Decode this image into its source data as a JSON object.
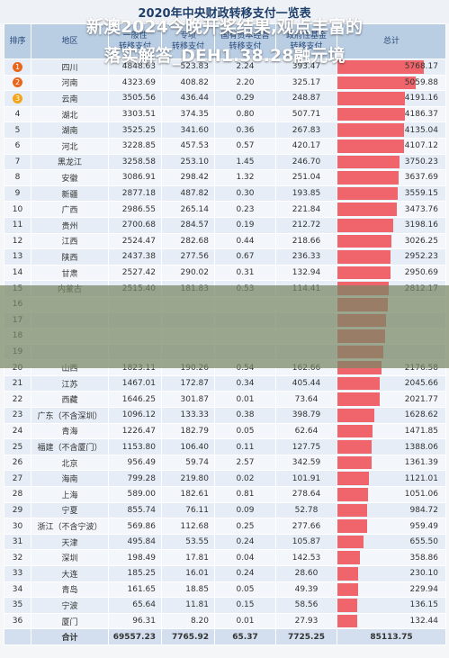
{
  "title": "2020年中央财政转移支付一览表",
  "headers": [
    "排序",
    "地区",
    "一般性\n转移支付",
    "专项\n转移支付",
    "国有资本经营\n转移支付",
    "政府性基金\n转移支付",
    "总计"
  ],
  "banner": {
    "line1": "新澳2024今晚开奖结果,观点丰富的",
    "line2": "落实解答_DEH1.38.28融元境"
  },
  "rows": [
    {
      "rank": "1",
      "medal": true,
      "region": "四川",
      "general": "4848.63",
      "special": "523.83",
      "state": "2.24",
      "fund": "393.47",
      "total": "5768.17",
      "total_value": 5768.17
    },
    {
      "rank": "2",
      "medal": true,
      "region": "河南",
      "general": "4323.69",
      "special": "408.82",
      "state": "2.20",
      "fund": "325.17",
      "total": "5059.88",
      "total_value": 5059.88
    },
    {
      "rank": "3",
      "medal": true,
      "region": "云南",
      "general": "3505.56",
      "special": "436.44",
      "state": "0.29",
      "fund": "248.87",
      "total": "4191.16",
      "total_value": 4191.16
    },
    {
      "rank": "4",
      "region": "湖北",
      "general": "3303.51",
      "special": "374.35",
      "state": "0.80",
      "fund": "507.71",
      "total": "4186.37",
      "total_value": 4186.37
    },
    {
      "rank": "5",
      "region": "湖南",
      "general": "3525.25",
      "special": "341.60",
      "state": "0.36",
      "fund": "267.83",
      "total": "4135.04",
      "total_value": 4135.04
    },
    {
      "rank": "6",
      "region": "河北",
      "general": "3228.85",
      "special": "457.53",
      "state": "0.57",
      "fund": "420.17",
      "total": "4107.12",
      "total_value": 4107.12
    },
    {
      "rank": "7",
      "region": "黑龙江",
      "general": "3258.58",
      "special": "253.10",
      "state": "1.45",
      "fund": "246.70",
      "total": "3750.23",
      "total_value": 3750.23
    },
    {
      "rank": "8",
      "region": "安徽",
      "general": "3086.91",
      "special": "298.42",
      "state": "1.32",
      "fund": "251.04",
      "total": "3637.69",
      "total_value": 3637.69
    },
    {
      "rank": "9",
      "region": "新疆",
      "general": "2877.18",
      "special": "487.82",
      "state": "0.30",
      "fund": "193.85",
      "total": "3559.15",
      "total_value": 3559.15
    },
    {
      "rank": "10",
      "region": "广西",
      "general": "2986.55",
      "special": "265.14",
      "state": "0.23",
      "fund": "221.84",
      "total": "3473.76",
      "total_value": 3473.76
    },
    {
      "rank": "11",
      "region": "贵州",
      "general": "2700.68",
      "special": "284.57",
      "state": "0.19",
      "fund": "212.72",
      "total": "3198.16",
      "total_value": 3198.16
    },
    {
      "rank": "12",
      "region": "江西",
      "general": "2524.47",
      "special": "282.68",
      "state": "0.44",
      "fund": "218.66",
      "total": "3026.25",
      "total_value": 3026.25
    },
    {
      "rank": "13",
      "region": "陕西",
      "general": "2437.38",
      "special": "277.56",
      "state": "0.67",
      "fund": "236.33",
      "total": "2952.23",
      "total_value": 2952.23
    },
    {
      "rank": "14",
      "region": "甘肃",
      "general": "2527.42",
      "special": "290.02",
      "state": "0.31",
      "fund": "132.94",
      "total": "2950.69",
      "total_value": 2950.69
    },
    {
      "rank": "15",
      "region": "内蒙古",
      "general": "2515.40",
      "special": "181.83",
      "state": "0.53",
      "fund": "114.41",
      "total": "2812.17",
      "total_value": 2812.17
    },
    {
      "rank": "16",
      "region": "",
      "general": "",
      "special": "",
      "state": "",
      "fund": "",
      "total": "",
      "total_value": 2700
    },
    {
      "rank": "17",
      "region": "",
      "general": "",
      "special": "",
      "state": "",
      "fund": "",
      "total": "",
      "total_value": 2600
    },
    {
      "rank": "18",
      "region": "",
      "general": "",
      "special": "",
      "state": "",
      "fund": "",
      "total": "",
      "total_value": 2500
    },
    {
      "rank": "19",
      "region": "",
      "general": "",
      "special": "",
      "state": "",
      "fund": "",
      "total": "",
      "total_value": 2350
    },
    {
      "rank": "20",
      "region": "山西",
      "general": "1823.11",
      "special": "190.26",
      "state": "0.54",
      "fund": "162.66",
      "total": "2176.58",
      "total_value": 2176.58
    },
    {
      "rank": "21",
      "region": "江苏",
      "general": "1467.01",
      "special": "172.87",
      "state": "0.34",
      "fund": "405.44",
      "total": "2045.66",
      "total_value": 2045.66
    },
    {
      "rank": "22",
      "region": "西藏",
      "general": "1646.25",
      "special": "301.87",
      "state": "0.01",
      "fund": "73.64",
      "total": "2021.77",
      "total_value": 2021.77
    },
    {
      "rank": "23",
      "region": "广东（不含深圳）",
      "general": "1096.12",
      "special": "133.33",
      "state": "0.38",
      "fund": "398.79",
      "total": "1628.62",
      "total_value": 1628.62
    },
    {
      "rank": "24",
      "region": "青海",
      "general": "1226.47",
      "special": "182.79",
      "state": "0.05",
      "fund": "62.64",
      "total": "1471.85",
      "total_value": 1471.85
    },
    {
      "rank": "25",
      "region": "福建（不含厦门）",
      "general": "1153.80",
      "special": "106.40",
      "state": "0.11",
      "fund": "127.75",
      "total": "1388.06",
      "total_value": 1388.06
    },
    {
      "rank": "26",
      "region": "北京",
      "general": "956.49",
      "special": "59.74",
      "state": "2.57",
      "fund": "342.59",
      "total": "1361.39",
      "total_value": 1361.39
    },
    {
      "rank": "27",
      "region": "海南",
      "general": "799.28",
      "special": "219.80",
      "state": "0.02",
      "fund": "101.91",
      "total": "1121.01",
      "total_value": 1121.01
    },
    {
      "rank": "28",
      "region": "上海",
      "general": "589.00",
      "special": "182.61",
      "state": "0.81",
      "fund": "278.64",
      "total": "1051.06",
      "total_value": 1051.06
    },
    {
      "rank": "29",
      "region": "宁夏",
      "general": "855.74",
      "special": "76.11",
      "state": "0.09",
      "fund": "52.78",
      "total": "984.72",
      "total_value": 984.72
    },
    {
      "rank": "30",
      "region": "浙江（不含宁波）",
      "general": "569.86",
      "special": "112.68",
      "state": "0.25",
      "fund": "277.66",
      "total": "959.49",
      "total_value": 959.49
    },
    {
      "rank": "31",
      "region": "天津",
      "general": "495.84",
      "special": "53.55",
      "state": "0.24",
      "fund": "105.87",
      "total": "655.50",
      "total_value": 655.5
    },
    {
      "rank": "32",
      "region": "深圳",
      "general": "198.49",
      "special": "17.81",
      "state": "0.04",
      "fund": "142.53",
      "total": "358.86",
      "total_value": 358.86
    },
    {
      "rank": "33",
      "region": "大连",
      "general": "185.25",
      "special": "16.01",
      "state": "0.24",
      "fund": "28.60",
      "total": "230.10",
      "total_value": 230.1
    },
    {
      "rank": "34",
      "region": "青岛",
      "general": "161.65",
      "special": "18.85",
      "state": "0.05",
      "fund": "49.39",
      "total": "229.94",
      "total_value": 229.94
    },
    {
      "rank": "35",
      "region": "宁波",
      "general": "65.64",
      "special": "11.81",
      "state": "0.15",
      "fund": "58.56",
      "total": "136.15",
      "total_value": 136.15
    },
    {
      "rank": "36",
      "region": "厦门",
      "general": "96.31",
      "special": "8.20",
      "state": "0.01",
      "fund": "27.93",
      "total": "132.44",
      "total_value": 132.44
    }
  ],
  "total_row": {
    "rank": "",
    "region": "合计",
    "general": "69557.23",
    "special": "7765.92",
    "state": "65.37",
    "fund": "7725.25",
    "total": "85113.75"
  },
  "colors": {
    "bar": "#f0656b",
    "header": "#b9cde3",
    "row_odd": "#e6edf6",
    "row_even": "#f3f6fa"
  }
}
